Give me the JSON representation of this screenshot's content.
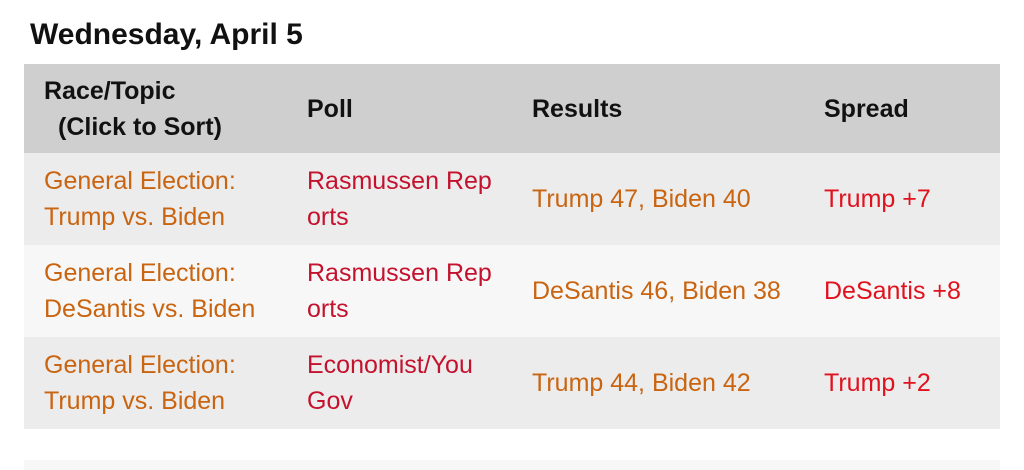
{
  "title": "Wednesday, April 5",
  "table": {
    "header": [
      "Race/Topic",
      "(Click to Sort)",
      "Poll",
      "Results",
      "Spread"
    ],
    "rows": [
      [
        "General Election: Trump vs. Biden",
        "Rasmussen Reports",
        "Trump 47, Biden 40",
        "Trump +7"
      ],
      [
        "General Election: DeSantis vs. Biden",
        "Rasmussen Reports",
        "DeSantis 46, Biden 38",
        "DeSantis +8"
      ],
      [
        "General Election: Trump vs. Biden",
        "Economist/YouGov",
        "Trump 44, Biden 42",
        "Trump +2"
      ]
    ]
  }
}
